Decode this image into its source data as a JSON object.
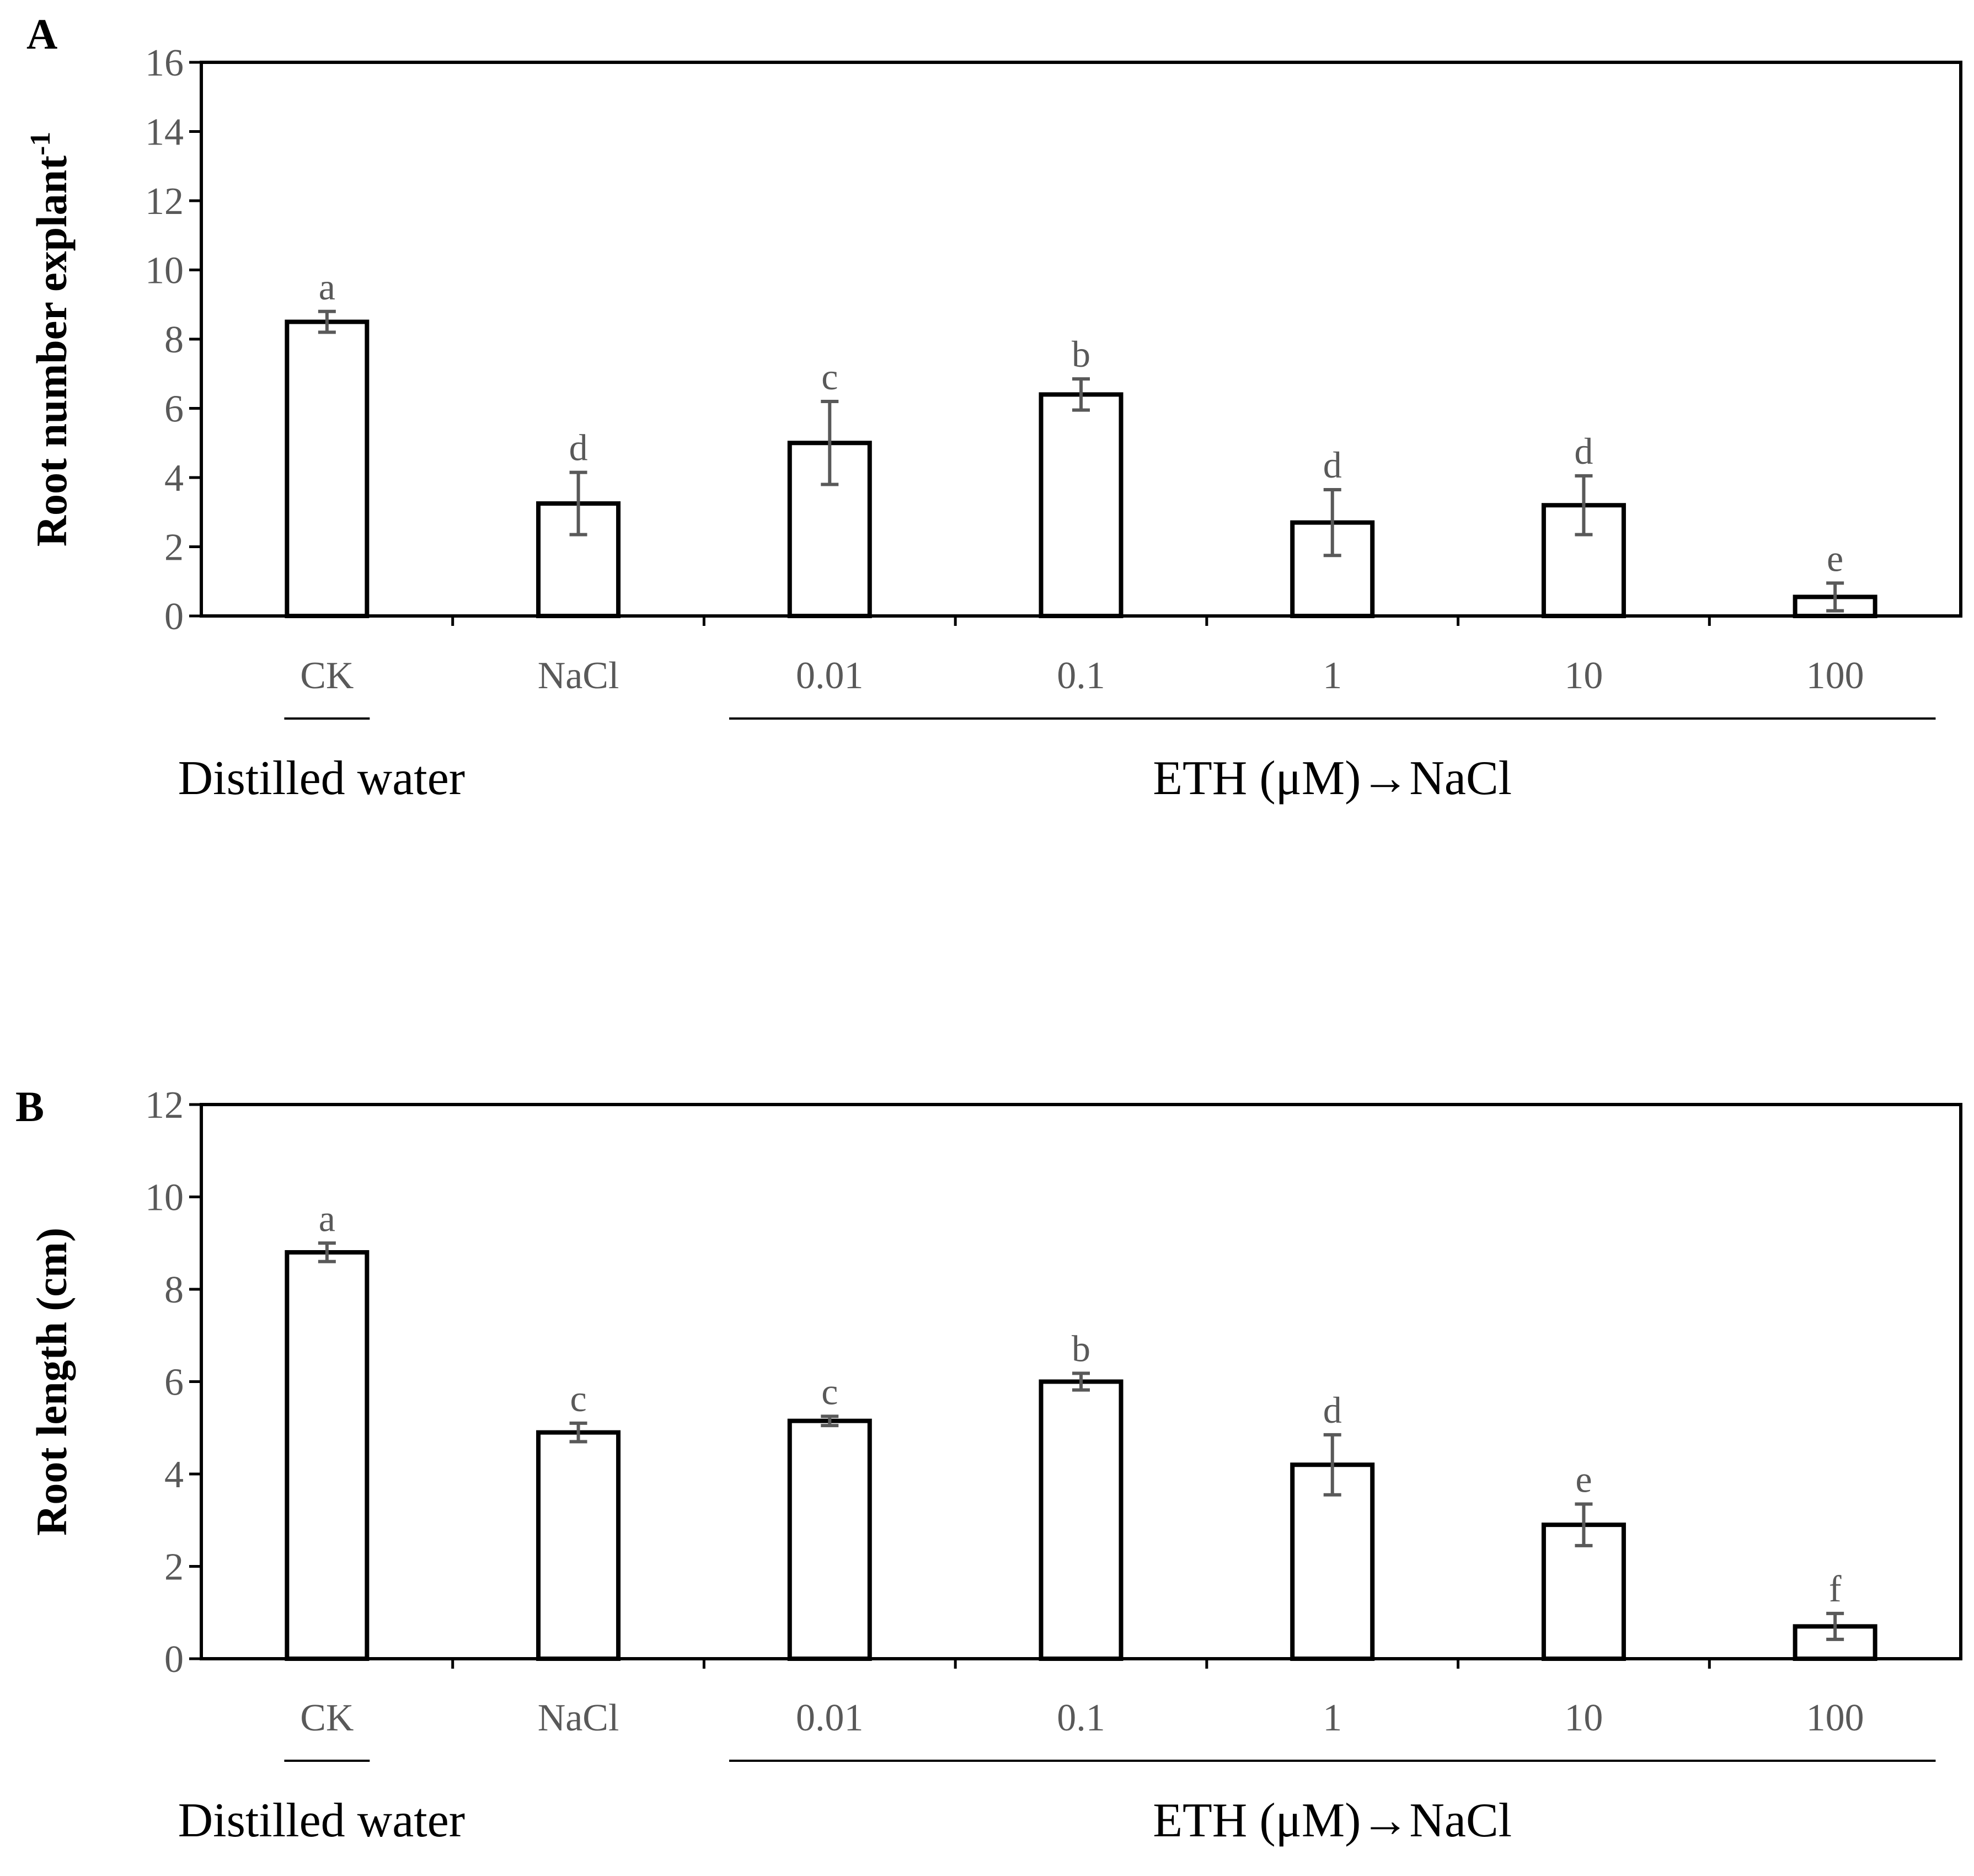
{
  "chart_data": [
    {
      "type": "bar",
      "panel": "A",
      "ylabel": "Root number explant",
      "ylabel_superscript": "-1",
      "ylim": [
        0,
        16
      ],
      "yticks": [
        0,
        2,
        4,
        6,
        8,
        10,
        12,
        14,
        16
      ],
      "categories": [
        "CK",
        "NaCl",
        "0.01",
        "0.1",
        "1",
        "10",
        "100"
      ],
      "values": [
        8.5,
        3.25,
        5.0,
        6.4,
        2.7,
        3.2,
        0.55
      ],
      "errors": [
        0.3,
        0.9,
        1.2,
        0.45,
        0.95,
        0.85,
        0.4
      ],
      "significance": [
        "a",
        "d",
        "c",
        "b",
        "d",
        "d",
        "e"
      ],
      "groups": [
        {
          "label": "Distilled water",
          "from": 0,
          "to": 0
        },
        {
          "label": "ETH (μM)→NaCl",
          "from": 2,
          "to": 6
        }
      ]
    },
    {
      "type": "bar",
      "panel": "B",
      "ylabel": "Root length (cm)",
      "ylabel_superscript": "",
      "ylim": [
        0,
        12
      ],
      "yticks": [
        0,
        2,
        4,
        6,
        8,
        10,
        12
      ],
      "categories": [
        "CK",
        "NaCl",
        "0.01",
        "0.1",
        "1",
        "10",
        "100"
      ],
      "values": [
        8.8,
        4.9,
        5.15,
        6.0,
        4.2,
        2.9,
        0.7
      ],
      "errors": [
        0.2,
        0.2,
        0.1,
        0.18,
        0.65,
        0.45,
        0.28
      ],
      "significance": [
        "a",
        "c",
        "c",
        "b",
        "d",
        "e",
        "f"
      ],
      "groups": [
        {
          "label": "Distilled water",
          "from": 0,
          "to": 0
        },
        {
          "label": "ETH (μM)→NaCl",
          "from": 2,
          "to": 6
        }
      ]
    }
  ]
}
